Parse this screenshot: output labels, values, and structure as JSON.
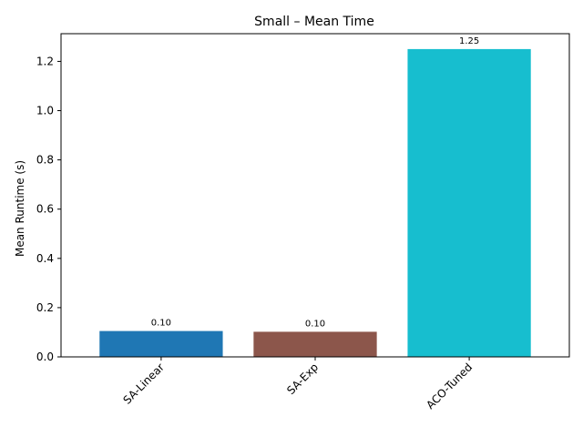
{
  "chart_data": {
    "type": "bar",
    "title": "Small – Mean Time",
    "xlabel": "",
    "ylabel": "Mean Runtime (s)",
    "categories": [
      "SA-Linear",
      "SA-Exp",
      "ACO-Tuned"
    ],
    "values": [
      0.105,
      0.102,
      1.25
    ],
    "data_labels": [
      "0.10",
      "0.10",
      "1.25"
    ],
    "colors": [
      "#1f77b4",
      "#8c564b",
      "#17becf"
    ],
    "ylim": [
      0,
      1.3125
    ],
    "yticks": [
      0.0,
      0.2,
      0.4,
      0.6,
      0.8,
      1.0,
      1.2
    ],
    "ytick_labels": [
      "0.0",
      "0.2",
      "0.4",
      "0.6",
      "0.8",
      "1.0",
      "1.2"
    ],
    "grid": false,
    "xtick_rotation_deg": 45
  }
}
